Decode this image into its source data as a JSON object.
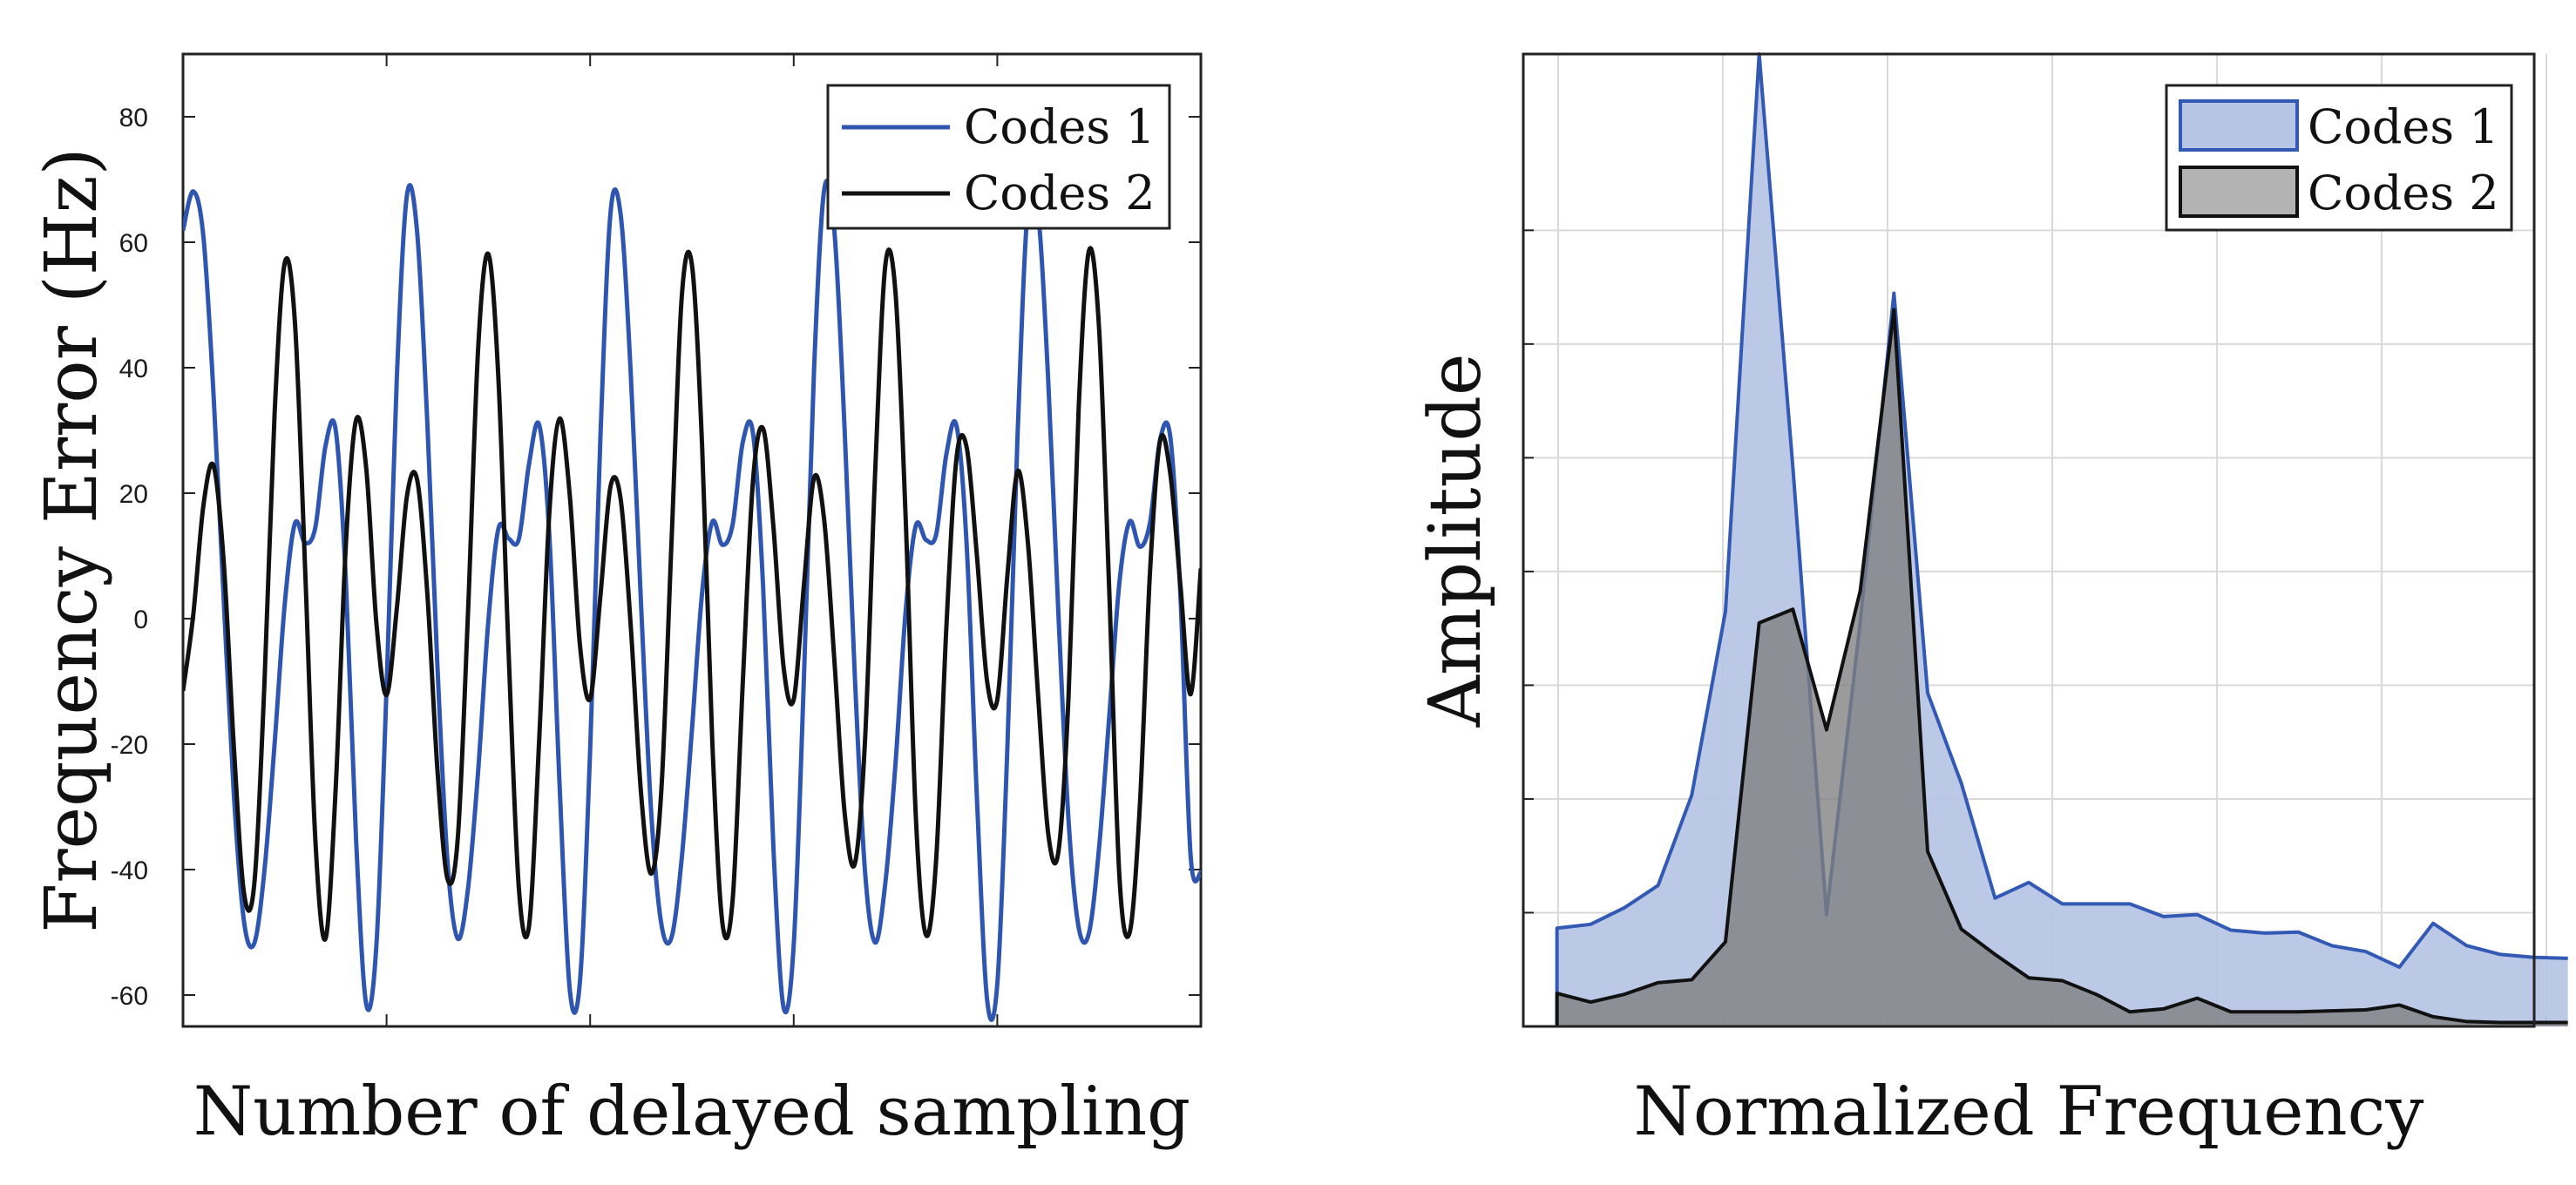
{
  "chart_data": [
    {
      "type": "line",
      "title": "",
      "xlabel": "Number of delayed sampling",
      "ylabel": "Frequency Error (Hz)",
      "xlim": [
        0,
        100
      ],
      "ylim": [
        -65,
        90
      ],
      "yticks": [
        -60,
        -40,
        -20,
        0,
        20,
        40,
        60,
        80
      ],
      "xticks": [
        20,
        40,
        60,
        80
      ],
      "grid": false,
      "legend_position": "top-right",
      "series": [
        {
          "name": "Codes 1",
          "color": "#2e56b0",
          "x": [
            0,
            1,
            2,
            3,
            4,
            5,
            6,
            7,
            8,
            9,
            10,
            11,
            12,
            13,
            14,
            15,
            16,
            17,
            18,
            19,
            20,
            21,
            22,
            23,
            24,
            25,
            26,
            27,
            28,
            29,
            30,
            31,
            32,
            33,
            34,
            35,
            36,
            37,
            38,
            39,
            40,
            41,
            42,
            43,
            44,
            45,
            46,
            47,
            48,
            49,
            50,
            51,
            52,
            53,
            54,
            55,
            56,
            57,
            58,
            59,
            60,
            61,
            62,
            63,
            64,
            65,
            66,
            67,
            68,
            69,
            70,
            71,
            72,
            73,
            74,
            75,
            76,
            77,
            78,
            79,
            80,
            81,
            82,
            83,
            84,
            85,
            86,
            87,
            88,
            89,
            90,
            91,
            92,
            93,
            94,
            95,
            96,
            97,
            98,
            99,
            100
          ],
          "values": [
            61.88,
            68.1,
            60.95,
            35.74,
            3.03,
            -28.19,
            -48.35,
            -51.77,
            -40.16,
            -19.93,
            2.39,
            15.21,
            12.03,
            14.53,
            27.54,
            30.07,
            6.12,
            -35.06,
            -61.45,
            -52.06,
            -11.01,
            38.07,
            67.47,
            61.66,
            31.35,
            -7.74,
            -39.03,
            -51.01,
            -43.07,
            -24.22,
            -0.34,
            14.42,
            12.77,
            12.73,
            24.7,
            30.84,
            13.05,
            -26.59,
            -59.13,
            -57.8,
            -20.95,
            28.49,
            64.65,
            64.36,
            38.77,
            2.32,
            -30.89,
            -48.72,
            -50.79,
            -38.17,
            -17.74,
            4.13,
            15.41,
            11.75,
            15.01,
            28.15,
            29.54,
            4.86,
            -36.34,
            -61.94,
            -52.0,
            -9.64,
            39.82,
            68.42,
            61.7,
            30.22,
            -9.04,
            -40.16,
            -51.63,
            -42.14,
            -23.11,
            1.26,
            14.83,
            12.54,
            13.45,
            26.23,
            30.72,
            11.48,
            -28.65,
            -60.73,
            -58.26,
            -20.13,
            29.58,
            65.53,
            64.77,
            38.11,
            0.99,
            -32.12,
            -49.26,
            -50.16,
            -36.53,
            -15.6,
            5.78,
            15.47,
            11.46,
            15.27,
            28.57,
            28.91,
            3.41,
            -37.91,
            -40.5
          ]
        },
        {
          "name": "Codes 2",
          "color": "#111111",
          "x": [
            0,
            1,
            2,
            3,
            4,
            5,
            6,
            7,
            8,
            9,
            10,
            11,
            12,
            13,
            14,
            15,
            16,
            17,
            18,
            19,
            20,
            21,
            22,
            23,
            24,
            25,
            26,
            27,
            28,
            29,
            30,
            31,
            32,
            33,
            34,
            35,
            36,
            37,
            38,
            39,
            40,
            41,
            42,
            43,
            44,
            45,
            46,
            47,
            48,
            49,
            50,
            51,
            52,
            53,
            54,
            55,
            56,
            57,
            58,
            59,
            60,
            61,
            62,
            63,
            64,
            65,
            66,
            67,
            68,
            69,
            70,
            71,
            72,
            73,
            74,
            75,
            76,
            77,
            78,
            79,
            80,
            81,
            82,
            83,
            84,
            85,
            86,
            87,
            88,
            89,
            90,
            91,
            92,
            93,
            94,
            95,
            96,
            97,
            98,
            99,
            100
          ],
          "values": [
            -11.5,
            0.5,
            17.98,
            24.38,
            9.03,
            -20.56,
            -43.84,
            -42.33,
            -10.35,
            32.75,
            56.74,
            47.11,
            7.84,
            -35.18,
            -51.01,
            -27.08,
            11.79,
            31.63,
            23.97,
            -0.72,
            -12.16,
            1.49,
            19.51,
            22.15,
            4.08,
            -24.16,
            -41.59,
            -34.89,
            0.94,
            43.2,
            58.11,
            37.86,
            -5.84,
            -43.05,
            -48.93,
            -19.06,
            17.11,
            31.88,
            19.63,
            -4.26,
            -12.76,
            3.46,
            21.06,
            19.04,
            -1.44,
            -27.8,
            -40.66,
            -27.23,
            12.47,
            51.28,
            56.39,
            27.55,
            -19.57,
            -48.6,
            -44.82,
            -10.09,
            22.0,
            30.26,
            14.76,
            -7.66,
            -12.91,
            5.3,
            22.44,
            15.64,
            -6.78,
            -30.91,
            -39.08,
            -19.6,
            23.29,
            56.31,
            51.96,
            15.97,
            -31.65,
            -50.44,
            -38.27,
            -1.27,
            25.71,
            27.23,
            10.0,
            -10.02,
            -12.94,
            7.06,
            23.51,
            12.24,
            -12.0,
            -34.24,
            -37.22,
            -12.44,
            33.7,
            58.6,
            46.27,
            4.44,
            -41.15,
            -50.07,
            -30.01,
            7.32,
            28.41,
            23.09,
            5.15,
            -12.05,
            8.0
          ]
        }
      ],
      "legend": [
        "Codes 1",
        "Codes 2"
      ]
    },
    {
      "type": "area",
      "title": "",
      "xlabel": "Normalized Frequency",
      "ylabel": "Amplitude",
      "xlim": [
        0,
        30
      ],
      "ylim": [
        0,
        1
      ],
      "grid": true,
      "legend_position": "top-right",
      "series": [
        {
          "name": "Codes 1",
          "fill": "#b7c5e5",
          "stroke": "#3259b3",
          "x": [
            1,
            2,
            3,
            4,
            5,
            6,
            7,
            8,
            9,
            10,
            11,
            12,
            13,
            14,
            15,
            16,
            17,
            18,
            19,
            20,
            21,
            22,
            23,
            24,
            25,
            26,
            27,
            28,
            29,
            30,
            31
          ],
          "values": [
            0.101,
            0.105,
            0.122,
            0.145,
            0.238,
            0.427,
            1.0,
            0.575,
            0.115,
            0.416,
            0.754,
            0.343,
            0.25,
            0.132,
            0.148,
            0.126,
            0.126,
            0.126,
            0.113,
            0.115,
            0.099,
            0.096,
            0.097,
            0.083,
            0.077,
            0.061,
            0.106,
            0.083,
            0.074,
            0.071,
            0.07
          ]
        },
        {
          "name": "Codes 2",
          "fill": "#7f7f7f",
          "stroke": "#111111",
          "x": [
            1,
            2,
            3,
            4,
            5,
            6,
            7,
            8,
            9,
            10,
            11,
            12,
            13,
            14,
            15,
            16,
            17,
            18,
            19,
            20,
            21,
            22,
            23,
            24,
            25,
            26,
            27,
            28,
            29,
            30,
            31
          ],
          "values": [
            0.034,
            0.025,
            0.033,
            0.045,
            0.048,
            0.087,
            0.415,
            0.429,
            0.305,
            0.448,
            0.737,
            0.18,
            0.1,
            0.074,
            0.05,
            0.047,
            0.033,
            0.015,
            0.018,
            0.029,
            0.015,
            0.015,
            0.015,
            0.016,
            0.017,
            0.022,
            0.01,
            0.005,
            0.004,
            0.004,
            0.004
          ]
        }
      ],
      "legend": [
        "Codes 1",
        "Codes 2"
      ]
    }
  ]
}
